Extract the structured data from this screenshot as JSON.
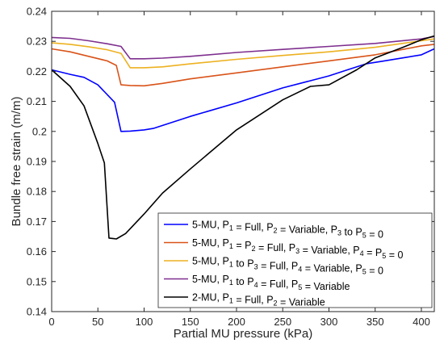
{
  "chart_data": {
    "type": "line",
    "xlabel": "Partial MU pressure (kPa)",
    "ylabel": "Bundle free strain (m/m)",
    "xlim": [
      0,
      414
    ],
    "ylim": [
      0.14,
      0.24
    ],
    "xticks": [
      "0",
      "50",
      "100",
      "150",
      "200",
      "250",
      "300",
      "350",
      "400"
    ],
    "yticks": [
      "0.14",
      "0.15",
      "0.16",
      "0.17",
      "0.18",
      "0.19",
      "0.2",
      "0.21",
      "0.22",
      "0.23",
      "0.24"
    ],
    "grid": false,
    "legend_position": "bottom-right",
    "series": [
      {
        "name": "5-MU, P1 = Full, P2 = Variable, P3 to P5 = 0",
        "legend": [
          [
            "5-MU, P",
            ""
          ],
          [
            "1",
            "sub"
          ],
          [
            " = Full, P",
            ""
          ],
          [
            "2",
            "sub"
          ],
          [
            " = Variable, P",
            ""
          ],
          [
            "3",
            "sub"
          ],
          [
            " to P",
            ""
          ],
          [
            "5",
            "sub"
          ],
          [
            " = 0",
            ""
          ]
        ],
        "color": "#0000ff",
        "x": [
          0,
          20,
          35,
          50,
          68,
          75,
          85,
          100,
          110,
          120,
          150,
          200,
          250,
          300,
          320,
          340,
          360,
          380,
          400,
          414
        ],
        "y": [
          0.2205,
          0.219,
          0.218,
          0.2155,
          0.2097,
          0.2,
          0.2001,
          0.2005,
          0.201,
          0.202,
          0.205,
          0.2095,
          0.2145,
          0.2185,
          0.2205,
          0.2225,
          0.2235,
          0.2245,
          0.2255,
          0.2275
        ]
      },
      {
        "name": "5-MU, P1 = P2 = Full, P3 = Variable, P4 = P5 = 0",
        "legend": [
          [
            "5-MU, P",
            ""
          ],
          [
            "1",
            "sub"
          ],
          [
            " = P",
            ""
          ],
          [
            "2",
            "sub"
          ],
          [
            " = Full, P",
            ""
          ],
          [
            "3",
            "sub"
          ],
          [
            " = Variable, P",
            ""
          ],
          [
            "4",
            "sub"
          ],
          [
            " = P",
            ""
          ],
          [
            "5",
            "sub"
          ],
          [
            " = 0",
            ""
          ]
        ],
        "color": "#d95319",
        "x": [
          0,
          20,
          40,
          60,
          70,
          75,
          85,
          100,
          120,
          150,
          200,
          250,
          300,
          350,
          400,
          414
        ],
        "y": [
          0.2275,
          0.2265,
          0.225,
          0.2235,
          0.222,
          0.2155,
          0.2153,
          0.2152,
          0.216,
          0.2175,
          0.2195,
          0.2215,
          0.2235,
          0.2255,
          0.2285,
          0.229
        ]
      },
      {
        "name": "5-MU, P1 to P3 = Full, P4 = Variable, P5 = 0",
        "legend": [
          [
            "5-MU, P",
            ""
          ],
          [
            "1",
            "sub"
          ],
          [
            " to P",
            ""
          ],
          [
            "3",
            "sub"
          ],
          [
            " = Full, P",
            ""
          ],
          [
            "4",
            "sub"
          ],
          [
            " = Variable, P",
            ""
          ],
          [
            "5",
            "sub"
          ],
          [
            " = 0",
            ""
          ]
        ],
        "color": "#edb120",
        "x": [
          0,
          20,
          40,
          60,
          75,
          85,
          100,
          120,
          150,
          200,
          250,
          300,
          350,
          400,
          414
        ],
        "y": [
          0.2295,
          0.229,
          0.2282,
          0.2272,
          0.226,
          0.2212,
          0.2212,
          0.2215,
          0.2225,
          0.224,
          0.2253,
          0.2265,
          0.228,
          0.2302,
          0.2308
        ]
      },
      {
        "name": "5-MU, P1 to P4 = Full, P5 = Variable",
        "legend": [
          [
            "5-MU, P",
            ""
          ],
          [
            "1",
            "sub"
          ],
          [
            " to P",
            ""
          ],
          [
            "4",
            "sub"
          ],
          [
            " = Full, P",
            ""
          ],
          [
            "5",
            "sub"
          ],
          [
            " = Variable",
            ""
          ]
        ],
        "color": "#7e2f8e",
        "x": [
          0,
          20,
          40,
          60,
          75,
          85,
          100,
          120,
          150,
          200,
          250,
          300,
          350,
          400,
          414
        ],
        "y": [
          0.2313,
          0.231,
          0.2302,
          0.2292,
          0.2283,
          0.2242,
          0.2242,
          0.2244,
          0.225,
          0.2263,
          0.2273,
          0.2283,
          0.2293,
          0.2308,
          0.2316
        ]
      },
      {
        "name": "2-MU, P1 = Full, P2 = Variable",
        "legend": [
          [
            "2-MU, P",
            ""
          ],
          [
            "1",
            "sub"
          ],
          [
            " = Full, P",
            ""
          ],
          [
            "2",
            "sub"
          ],
          [
            " = Variable",
            ""
          ]
        ],
        "color": "#000000",
        "x": [
          0,
          20,
          35,
          50,
          57,
          62,
          67,
          70,
          80,
          100,
          120,
          150,
          200,
          250,
          280,
          300,
          330,
          350,
          380,
          400,
          414
        ],
        "y": [
          0.2205,
          0.215,
          0.2085,
          0.196,
          0.1895,
          0.1645,
          0.1643,
          0.1642,
          0.166,
          0.1725,
          0.1795,
          0.1875,
          0.2005,
          0.2105,
          0.215,
          0.2155,
          0.2205,
          0.2245,
          0.228,
          0.2305,
          0.2318
        ]
      }
    ]
  }
}
